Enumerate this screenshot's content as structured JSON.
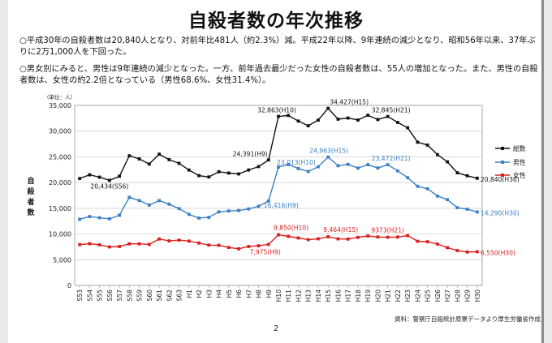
{
  "page": {
    "title": "自殺者数の年次推移",
    "bullet1": "○平成30年の自殺者数は20,840人となり、対前年比481人（約2.3%）減。平成22年以降、9年連続の減少となり、昭和56年以来、37年ぶりに2万1,000人を下回った。",
    "bullet2": "○男女別にみると、男性は9年連続の減少となった。一方、前年過去最少だった女性の自殺者数は、55人の増加となった。また、男性の自殺者数は、女性の約2.2倍となっている（男性68.6%、女性31.4%）。",
    "source": "資料：警察庁自殺統計原票データより厚生労働省作成",
    "page_number": "2"
  },
  "chart_data": {
    "type": "line",
    "unit_label": "（単位：人）",
    "ylabel": "自殺者数",
    "ylim": [
      0,
      35000
    ],
    "yticks": [
      "0",
      "5,000",
      "10,000",
      "15,000",
      "20,000",
      "25,000",
      "30,000",
      "35,000"
    ],
    "grid": "horizontal",
    "legend_position": "right",
    "categories": [
      "S53",
      "S54",
      "S55",
      "S56",
      "S57",
      "S58",
      "S59",
      "S60",
      "S61",
      "S62",
      "S63",
      "H1",
      "H2",
      "H3",
      "H4",
      "H5",
      "H6",
      "H7",
      "H8",
      "H9",
      "H10",
      "H11",
      "H12",
      "H13",
      "H14",
      "H15",
      "H16",
      "H17",
      "H18",
      "H19",
      "H20",
      "H21",
      "H22",
      "H23",
      "H24",
      "H25",
      "H26",
      "H27",
      "H28",
      "H29",
      "H30"
    ],
    "series": [
      {
        "name": "総数",
        "color": "#111111",
        "values": [
          20788,
          21503,
          21048,
          20434,
          21228,
          25202,
          24596,
          23599,
          25524,
          24460,
          23742,
          22436,
          21346,
          21084,
          22104,
          21851,
          21679,
          22445,
          23104,
          24391,
          32863,
          33048,
          31957,
          31042,
          32143,
          34427,
          32325,
          32552,
          32155,
          33093,
          32249,
          32845,
          31690,
          30651,
          27858,
          27283,
          25427,
          24025,
          21897,
          21321,
          20840
        ]
      },
      {
        "name": "男性",
        "color": "#3b80c4",
        "values": [
          12859,
          13386,
          13155,
          12942,
          13654,
          17116,
          16508,
          15624,
          16497,
          15802,
          14934,
          13818,
          13102,
          13242,
          14296,
          14468,
          14560,
          14874,
          15393,
          16416,
          23013,
          23512,
          22727,
          22144,
          23080,
          24963,
          23272,
          23540,
          22813,
          23478,
          22831,
          23472,
          22283,
          20955,
          19273,
          18787,
          17386,
          16681,
          15121,
          14826,
          14290
        ]
      },
      {
        "name": "女性",
        "color": "#d9201e",
        "values": [
          7929,
          8117,
          7893,
          7492,
          7574,
          8086,
          8088,
          7975,
          9027,
          8658,
          8808,
          8618,
          8244,
          7842,
          7808,
          7383,
          7119,
          7571,
          7711,
          7975,
          9850,
          9536,
          9230,
          8898,
          9063,
          9464,
          9053,
          9012,
          9342,
          9615,
          9418,
          9373,
          9407,
          9696,
          8585,
          8496,
          8041,
          7344,
          6776,
          6495,
          6550
        ]
      }
    ],
    "annotations": [
      {
        "text": "20,434(S56)",
        "series": 0,
        "index": 3
      },
      {
        "text": "24,391(H9)",
        "series": 0,
        "index": 19
      },
      {
        "text": "32,863(H10)",
        "series": 0,
        "index": 20
      },
      {
        "text": "34,427(H15)",
        "series": 0,
        "index": 25
      },
      {
        "text": "32,845(H21)",
        "series": 0,
        "index": 31
      },
      {
        "text": "20,840(H30)",
        "series": 0,
        "index": 40
      },
      {
        "text": "16,416(H9)",
        "series": 1,
        "index": 19
      },
      {
        "text": "23,013(H10)",
        "series": 1,
        "index": 20
      },
      {
        "text": "24,963(H15)",
        "series": 1,
        "index": 25
      },
      {
        "text": "23,472(H21)",
        "series": 1,
        "index": 31
      },
      {
        "text": "14,290(H30)",
        "series": 1,
        "index": 40
      },
      {
        "text": "7,975(H9)",
        "series": 2,
        "index": 19
      },
      {
        "text": "9,850(H10)",
        "series": 2,
        "index": 20
      },
      {
        "text": "9,464(H15)",
        "series": 2,
        "index": 25
      },
      {
        "text": "9373(H21)",
        "series": 2,
        "index": 31
      },
      {
        "text": "6,550(H30)",
        "series": 2,
        "index": 40
      }
    ]
  }
}
